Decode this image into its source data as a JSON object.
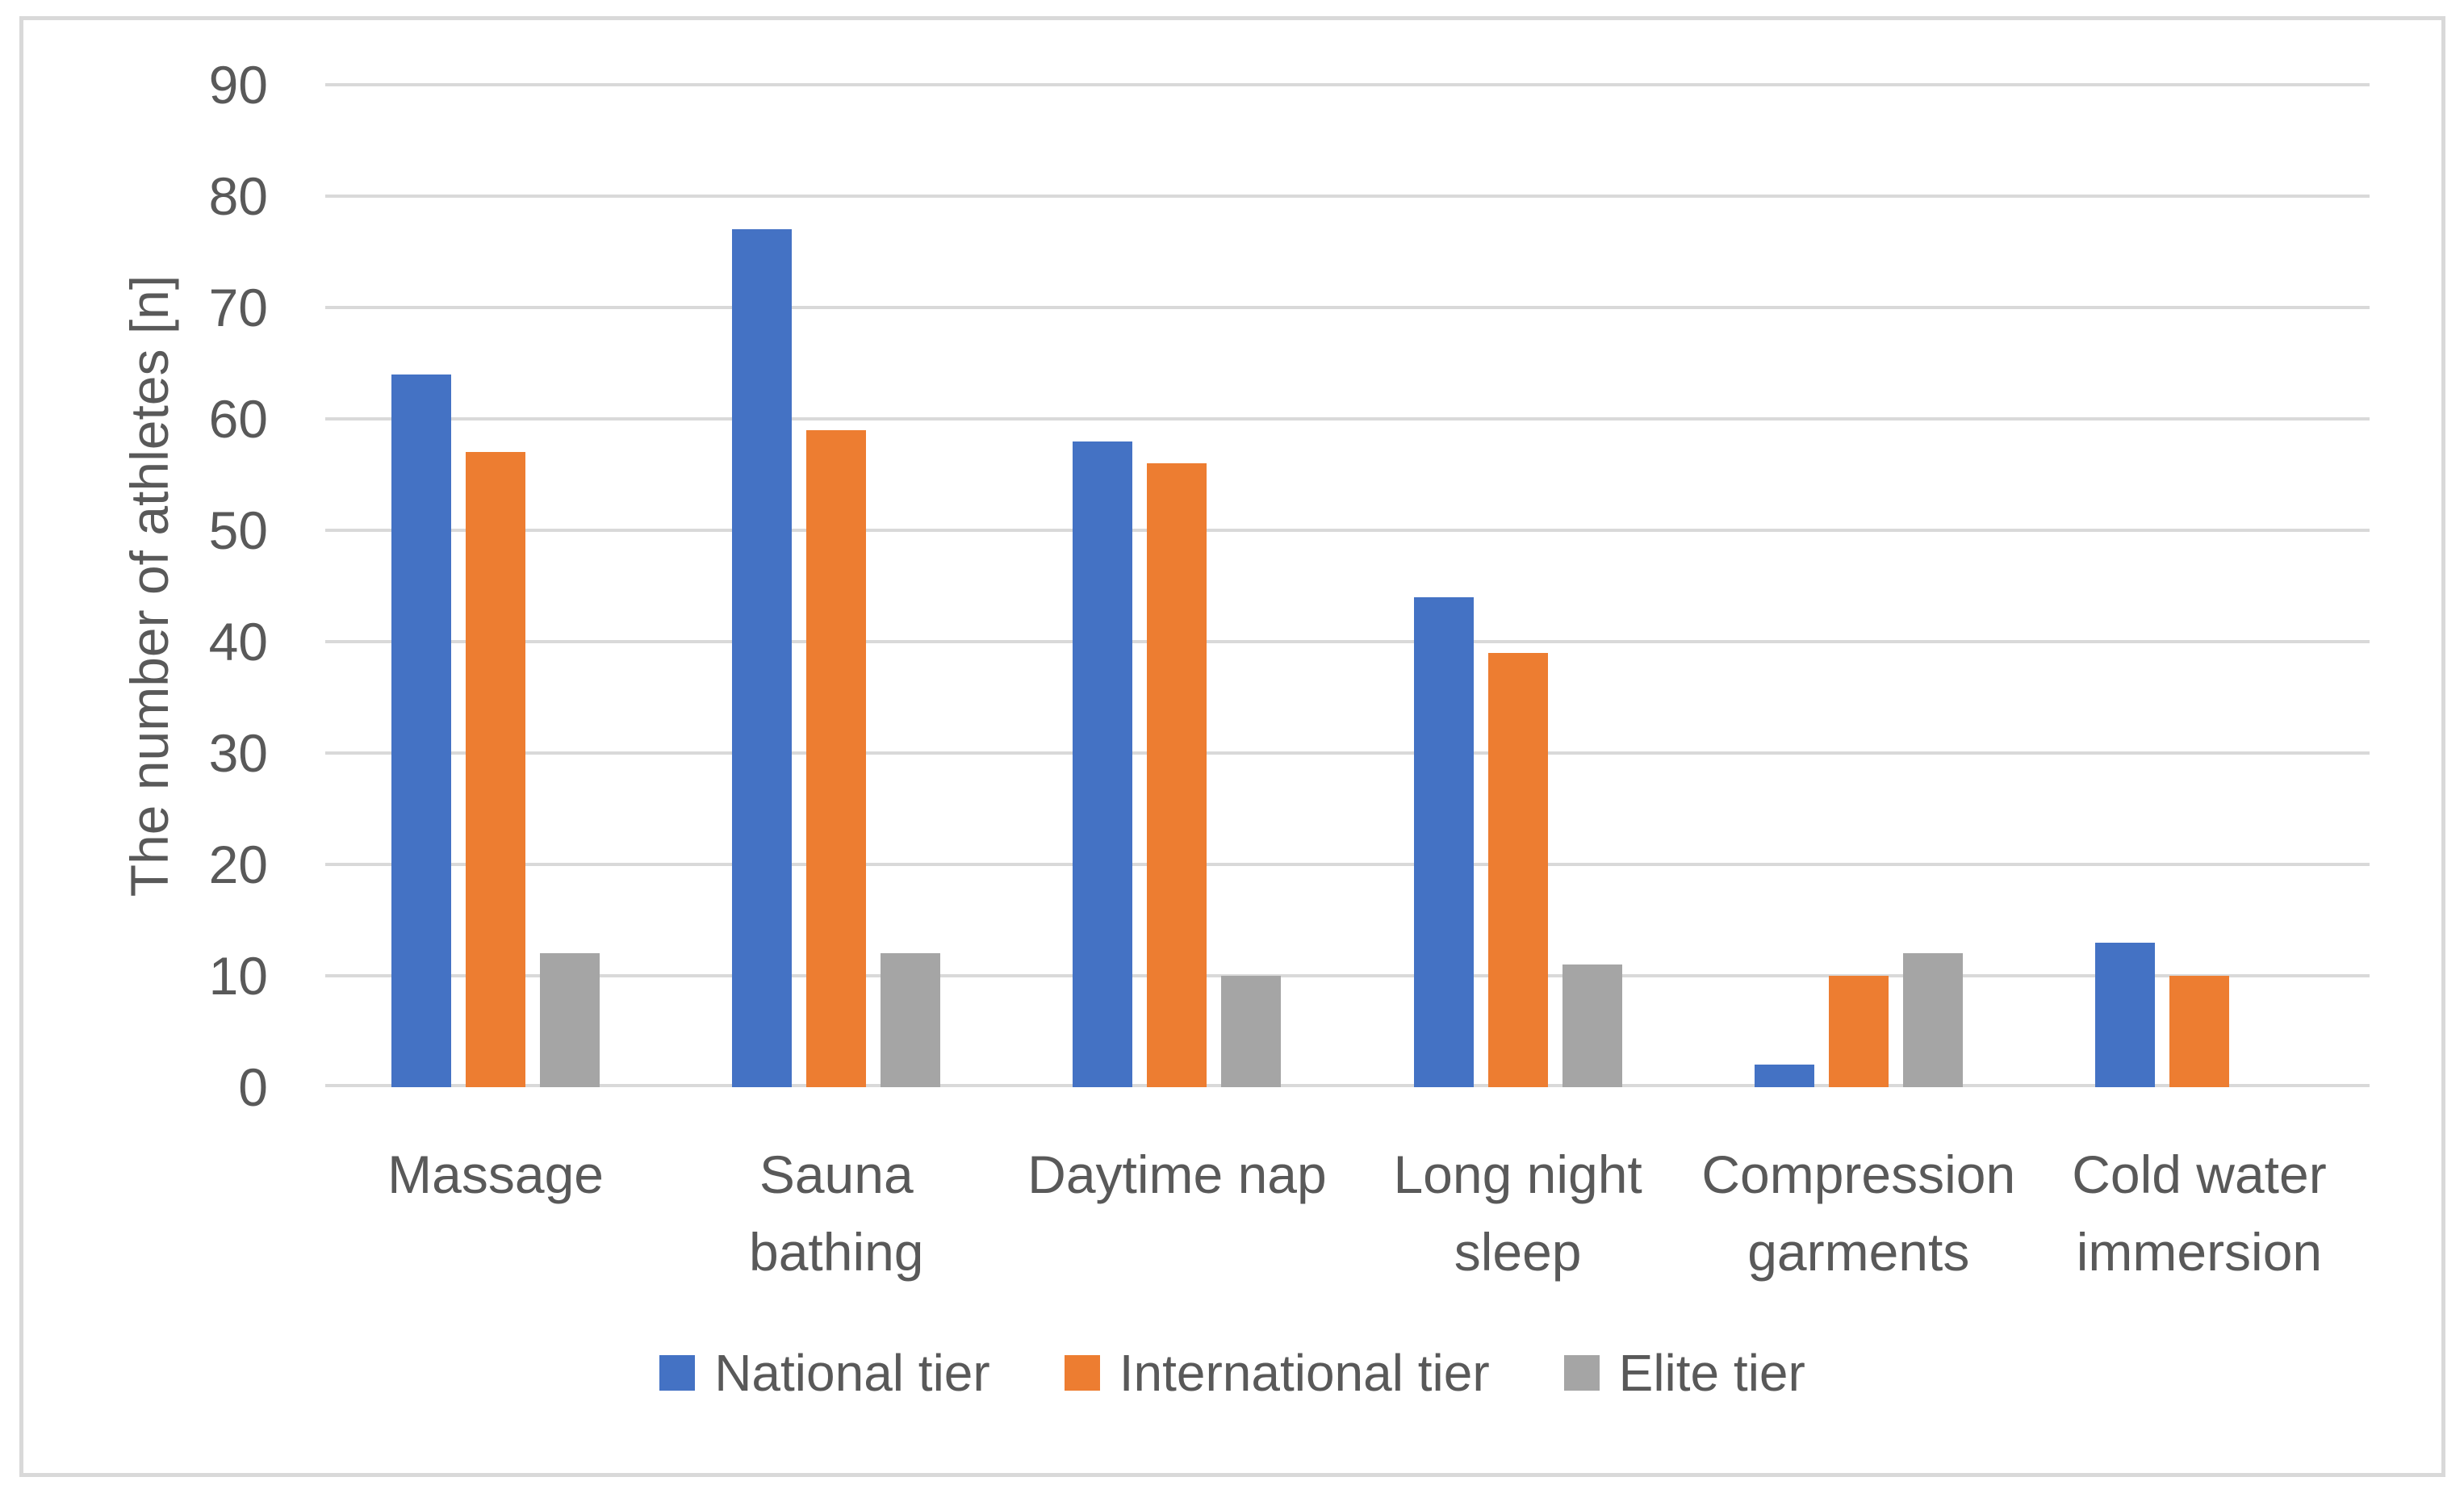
{
  "chart_data": {
    "type": "bar",
    "title": "",
    "xlabel": "",
    "ylabel": "The number of athletes [n]",
    "ylim": [
      0,
      90
    ],
    "yticks": [
      0,
      10,
      20,
      30,
      40,
      50,
      60,
      70,
      80,
      90
    ],
    "grid": "horizontal",
    "legend_position": "bottom-center",
    "categories": [
      "Massage",
      "Sauna\nbathing",
      "Daytime nap",
      "Long night\nsleep",
      "Compression\ngarments",
      "Cold water\nimmersion"
    ],
    "series": [
      {
        "name": "National tier",
        "color": "#4472C4",
        "values": [
          64,
          77,
          58,
          44,
          2,
          13
        ]
      },
      {
        "name": "International tier",
        "color": "#ED7D31",
        "values": [
          57,
          59,
          56,
          39,
          10,
          10
        ]
      },
      {
        "name": "Elite tier",
        "color": "#A5A5A5",
        "values": [
          12,
          12,
          10,
          11,
          12,
          0
        ]
      }
    ],
    "styles": {
      "text_color": "#595959",
      "gridline_color": "#D9D9D9",
      "frame_border_color": "#D9D9D9",
      "background": "#FFFFFF"
    }
  }
}
